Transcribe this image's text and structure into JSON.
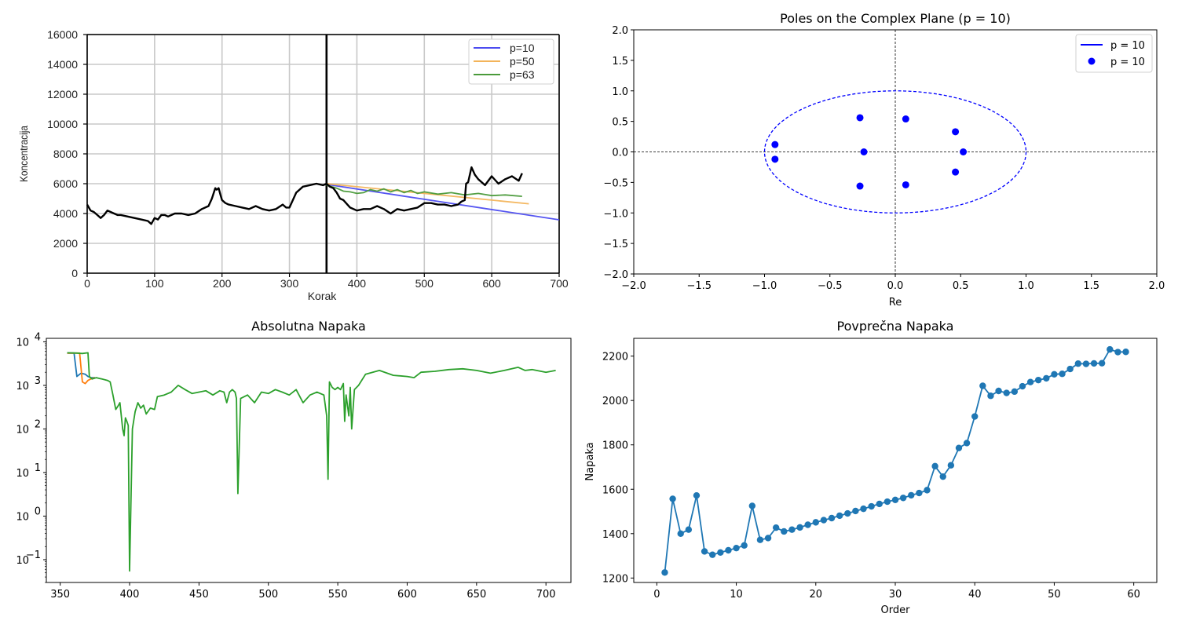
{
  "chart_data": [
    {
      "type": "line",
      "title": "",
      "xlabel": "Korak",
      "ylabel": "Koncentracija",
      "xlim": [
        0,
        700
      ],
      "ylim": [
        0,
        16000
      ],
      "xticks": [
        "0",
        "100",
        "200",
        "300",
        "400",
        "500",
        "600",
        "700"
      ],
      "yticks": [
        "0",
        "2000",
        "4000",
        "6000",
        "8000",
        "10000",
        "12000",
        "14000",
        "16000"
      ],
      "grid": true,
      "legend_position": "top-right",
      "vertical_marker_x": 355,
      "actual_series": {
        "color": "#000000",
        "x": [
          0,
          5,
          10,
          15,
          20,
          25,
          30,
          35,
          40,
          45,
          50,
          60,
          70,
          80,
          90,
          95,
          100,
          105,
          110,
          115,
          120,
          130,
          140,
          150,
          160,
          170,
          180,
          185,
          190,
          192,
          195,
          198,
          200,
          205,
          210,
          220,
          230,
          240,
          250,
          260,
          270,
          280,
          290,
          295,
          300,
          305,
          310,
          320,
          330,
          340,
          350,
          355,
          360,
          365,
          370,
          375,
          380,
          390,
          400,
          410,
          420,
          430,
          440,
          450,
          460,
          470,
          480,
          490,
          500,
          510,
          520,
          530,
          540,
          550,
          555,
          560,
          562,
          565,
          570,
          575,
          580,
          590,
          600,
          610,
          620,
          630,
          640,
          645
        ],
        "y": [
          4600,
          4200,
          4100,
          3900,
          3700,
          3900,
          4200,
          4100,
          4000,
          3900,
          3900,
          3800,
          3700,
          3600,
          3500,
          3300,
          3700,
          3600,
          3900,
          3900,
          3800,
          4000,
          4000,
          3900,
          4000,
          4300,
          4500,
          5000,
          5700,
          5600,
          5700,
          5200,
          4900,
          4700,
          4600,
          4500,
          4400,
          4300,
          4500,
          4300,
          4200,
          4300,
          4600,
          4400,
          4400,
          4900,
          5400,
          5800,
          5900,
          6000,
          5900,
          6000,
          5800,
          5700,
          5400,
          5000,
          4900,
          4400,
          4200,
          4300,
          4300,
          4500,
          4300,
          4000,
          4300,
          4200,
          4300,
          4400,
          4700,
          4700,
          4600,
          4600,
          4500,
          4600,
          4800,
          4900,
          6000,
          6100,
          7100,
          6600,
          6300,
          5900,
          6500,
          6000,
          6300,
          6500,
          6200,
          6700
        ]
      },
      "series": [
        {
          "name": "p=10",
          "color": "#4c4cf0",
          "x": [
            355,
            700
          ],
          "y": [
            5950,
            3580
          ]
        },
        {
          "name": "p=50",
          "color": "#f3b45a",
          "x": [
            355,
            655
          ],
          "y": [
            6000,
            4650
          ]
        },
        {
          "name": "p=63",
          "color": "#4a9a3a",
          "x": [
            355,
            370,
            380,
            390,
            400,
            410,
            420,
            430,
            440,
            450,
            460,
            470,
            480,
            490,
            500,
            520,
            540,
            560,
            580,
            600,
            620,
            645
          ],
          "y": [
            5900,
            5700,
            5500,
            5450,
            5350,
            5400,
            5600,
            5500,
            5650,
            5450,
            5600,
            5400,
            5550,
            5350,
            5450,
            5300,
            5400,
            5250,
            5350,
            5200,
            5250,
            5150
          ]
        }
      ]
    },
    {
      "type": "scatter",
      "title": "Poles on the Complex Plane (p = 10)",
      "xlabel": "Re",
      "ylabel": "",
      "xlim": [
        -2.0,
        2.0
      ],
      "ylim": [
        -2.0,
        2.0
      ],
      "xticks": [
        "−2.0",
        "−1.5",
        "−1.0",
        "−0.5",
        "0.0",
        "0.5",
        "1.0",
        "1.5",
        "2.0"
      ],
      "yticks": [
        "−2.0",
        "−1.5",
        "−1.0",
        "−0.5",
        "0.0",
        "0.5",
        "1.0",
        "1.5",
        "2.0"
      ],
      "legend_position": "top-right",
      "unit_circle": {
        "name": "p = 10",
        "color": "#0000ff"
      },
      "series": [
        {
          "name": "p = 10",
          "color": "#0000ff",
          "x": [
            -0.92,
            -0.92,
            -0.27,
            -0.27,
            -0.24,
            0.08,
            0.08,
            0.46,
            0.46,
            0.52
          ],
          "y": [
            0.12,
            -0.12,
            0.56,
            -0.56,
            0.0,
            0.54,
            -0.54,
            0.33,
            -0.33,
            0.0
          ]
        }
      ]
    },
    {
      "type": "line",
      "title": "Absolutna Napaka",
      "xlabel": "",
      "ylabel": "",
      "yscale": "log",
      "xlim": [
        340,
        718
      ],
      "ylim": [
        0.03,
        12000
      ],
      "xticks": [
        "350",
        "400",
        "450",
        "500",
        "550",
        "600",
        "650",
        "700"
      ],
      "yticks": [
        "10^-1",
        "10^0",
        "10^1",
        "10^2",
        "10^3",
        "10^4"
      ],
      "series": [
        {
          "name": "",
          "color": "#1f77b4",
          "x": [
            355,
            360,
            362,
            365,
            368,
            370,
            372,
            375
          ],
          "y": [
            5500,
            5500,
            1600,
            1900,
            1800,
            1600,
            1500,
            1500
          ]
        },
        {
          "name": "",
          "color": "#ff7f0e",
          "x": [
            355,
            362,
            364,
            366,
            368,
            370,
            372,
            375
          ],
          "y": [
            5500,
            5500,
            5500,
            1200,
            1100,
            1300,
            1400,
            1500
          ]
        },
        {
          "name": "",
          "color": "#2ca02c",
          "x": [
            355,
            362,
            366,
            370,
            371,
            373,
            376,
            380,
            384,
            386,
            388,
            390,
            392,
            393,
            395,
            396,
            397,
            398,
            399,
            400,
            402,
            404,
            406,
            408,
            410,
            412,
            415,
            418,
            420,
            425,
            430,
            435,
            440,
            445,
            450,
            455,
            460,
            465,
            468,
            470,
            472,
            474,
            476,
            477,
            478,
            480,
            485,
            490,
            495,
            500,
            505,
            510,
            515,
            520,
            525,
            530,
            535,
            540,
            542,
            543,
            544,
            546,
            548,
            550,
            552,
            554,
            555,
            556,
            558,
            559,
            560,
            562,
            565,
            570,
            580,
            590,
            600,
            605,
            610,
            620,
            630,
            640,
            650,
            660,
            670,
            680,
            685,
            690,
            700,
            707
          ],
          "y": [
            5600,
            5500,
            5400,
            5600,
            1600,
            1400,
            1500,
            1400,
            1300,
            1200,
            600,
            280,
            350,
            400,
            100,
            70,
            180,
            150,
            120,
            0.055,
            100,
            250,
            400,
            300,
            350,
            220,
            300,
            280,
            550,
            600,
            700,
            1000,
            800,
            650,
            700,
            750,
            600,
            750,
            700,
            400,
            700,
            800,
            700,
            500,
            3.3,
            500,
            600,
            400,
            700,
            650,
            800,
            700,
            600,
            800,
            400,
            600,
            700,
            600,
            200,
            7,
            1200,
            900,
            800,
            900,
            800,
            1100,
            150,
            600,
            200,
            900,
            100,
            800,
            1000,
            1800,
            2200,
            1700,
            1600,
            1500,
            2000,
            2100,
            2300,
            2400,
            2200,
            1900,
            2200,
            2600,
            2200,
            2300,
            2000,
            2200
          ]
        }
      ]
    },
    {
      "type": "line",
      "title": "Povprečna Napaka",
      "xlabel": "Order",
      "ylabel": "Napaka",
      "xlim": [
        -2.9,
        62.9
      ],
      "ylim": [
        1180,
        2280
      ],
      "xticks": [
        "0",
        "10",
        "20",
        "30",
        "40",
        "50",
        "60"
      ],
      "yticks": [
        "1200",
        "1400",
        "1600",
        "1800",
        "2000",
        "2200"
      ],
      "series": [
        {
          "name": "",
          "color": "#1f77b4",
          "x": [
            1,
            2,
            3,
            4,
            5,
            6,
            7,
            8,
            9,
            10,
            11,
            12,
            13,
            14,
            15,
            16,
            17,
            18,
            19,
            20,
            21,
            22,
            23,
            24,
            25,
            26,
            27,
            28,
            29,
            30,
            31,
            32,
            33,
            34,
            35,
            36,
            37,
            38,
            39,
            40,
            41,
            42,
            43,
            44,
            45,
            46,
            47,
            48,
            49,
            50,
            51,
            52,
            53,
            54,
            55,
            56,
            57,
            58,
            59
          ],
          "y": [
            1225,
            1557,
            1400,
            1418,
            1572,
            1320,
            1305,
            1315,
            1325,
            1335,
            1347,
            1525,
            1372,
            1380,
            1427,
            1410,
            1418,
            1428,
            1440,
            1451,
            1461,
            1470,
            1481,
            1491,
            1502,
            1512,
            1523,
            1534,
            1544,
            1552,
            1561,
            1573,
            1583,
            1596,
            1704,
            1657,
            1708,
            1786,
            1808,
            1928,
            2066,
            2021,
            2043,
            2034,
            2040,
            2064,
            2083,
            2092,
            2100,
            2118,
            2120,
            2142,
            2166,
            2165,
            2167,
            2168,
            2230,
            2218,
            2219
          ]
        }
      ]
    }
  ]
}
